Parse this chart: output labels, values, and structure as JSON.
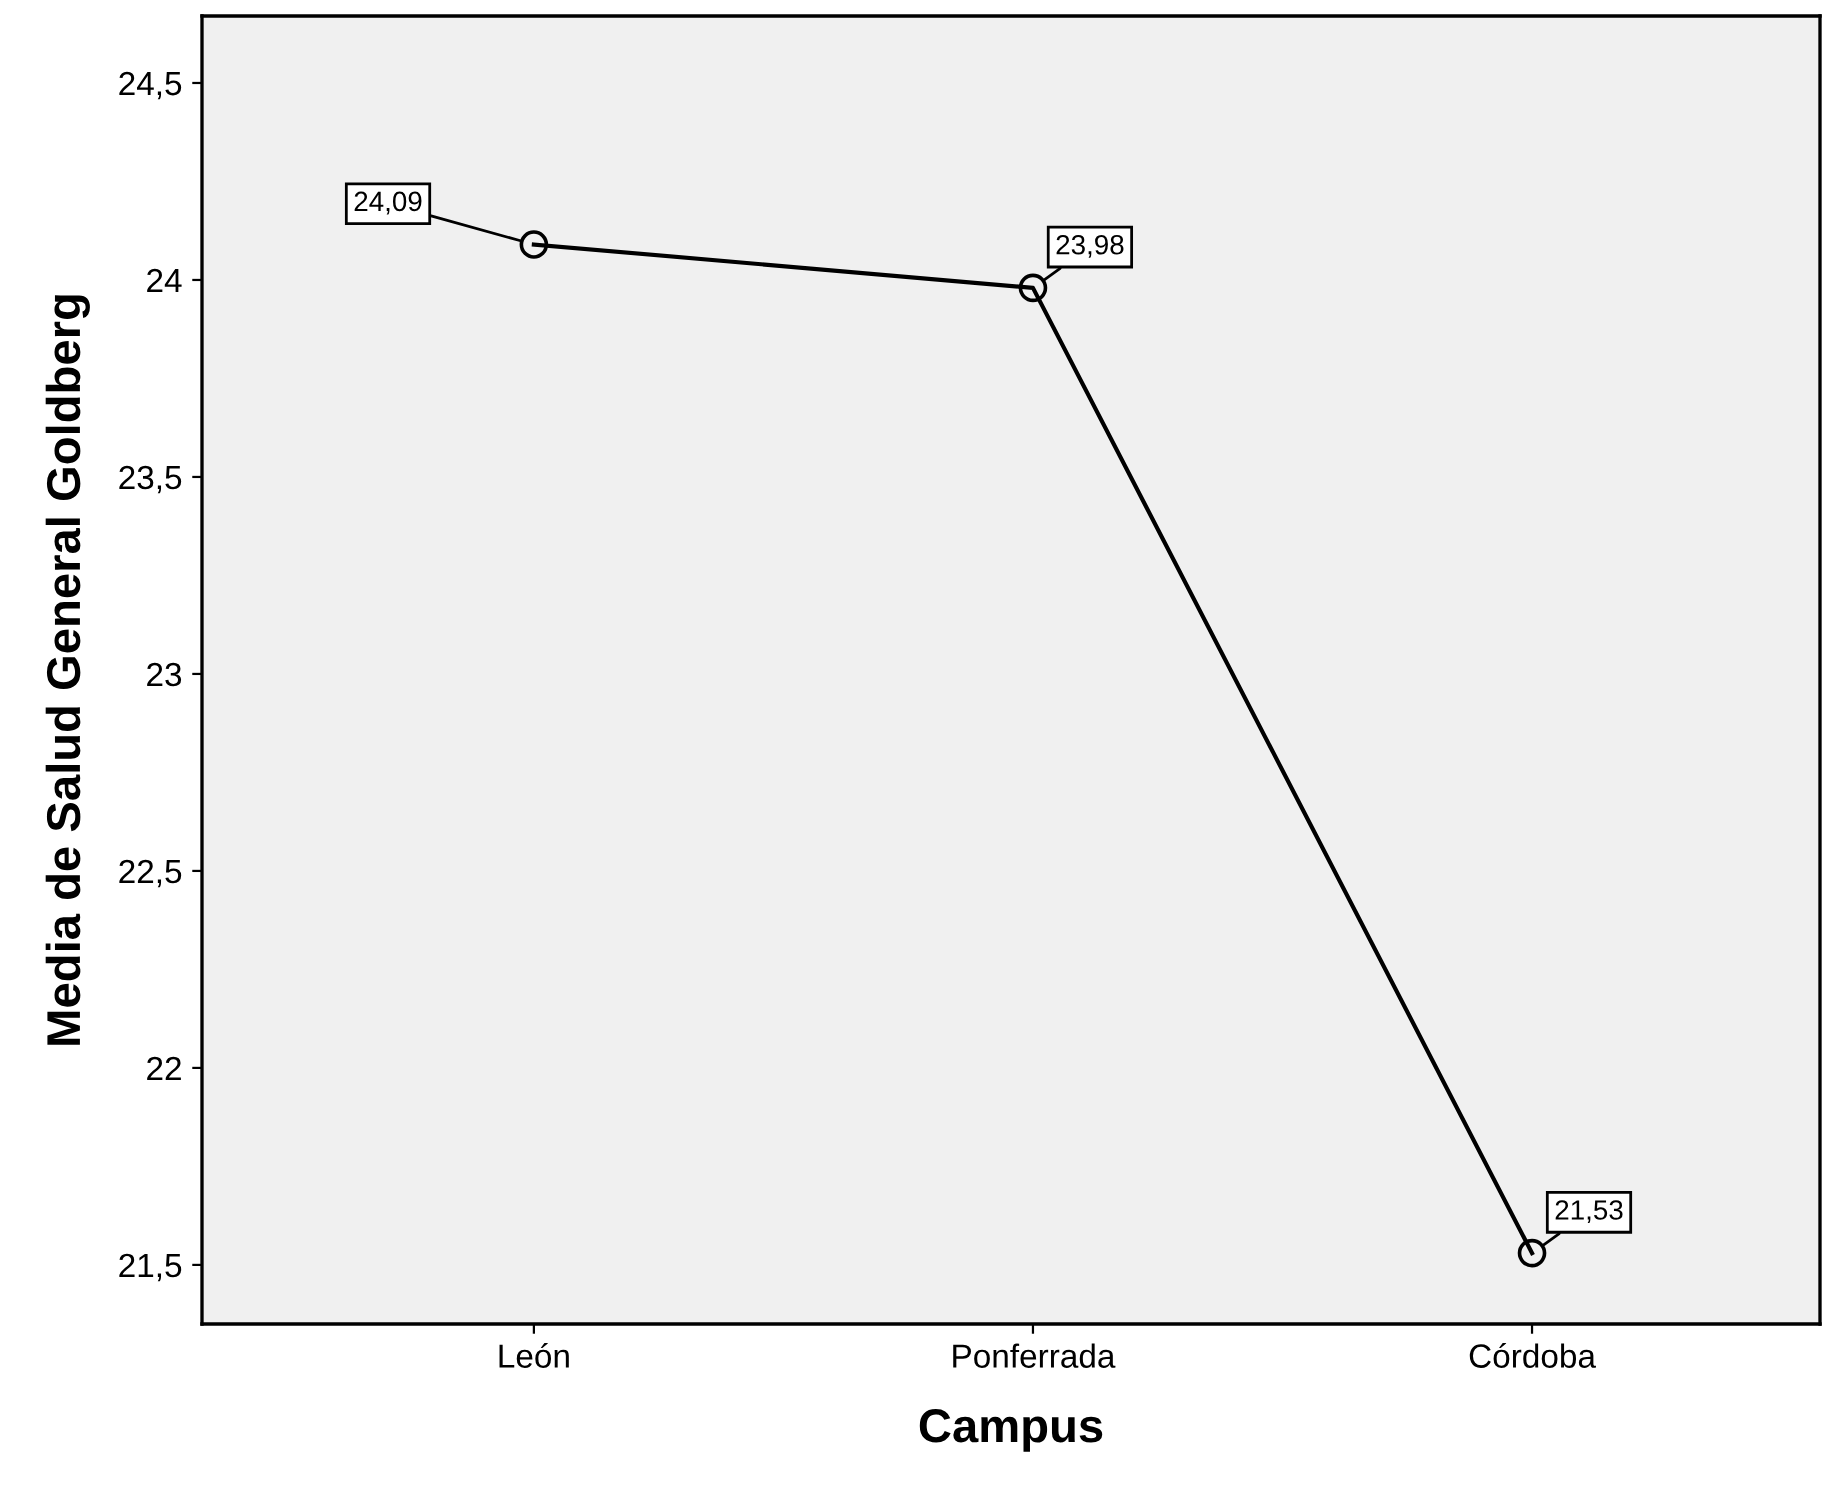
{
  "chart_data": {
    "type": "line",
    "xlabel": "Campus",
    "ylabel": "Media de Salud General Goldberg",
    "categories": [
      "León",
      "Ponferrada",
      "Córdoba"
    ],
    "series": [
      {
        "color": "#000000",
        "values": [
          24.09,
          23.98,
          21.53
        ],
        "value_labels": [
          "24,09",
          "23,98",
          "21,53"
        ]
      }
    ],
    "ylim": [
      21.35,
      24.67
    ],
    "yticks": [
      {
        "value": 21.5,
        "label": "21,5"
      },
      {
        "value": 22,
        "label": "22"
      },
      {
        "value": 22.5,
        "label": "22,5"
      },
      {
        "value": 23,
        "label": "23"
      },
      {
        "value": 23.5,
        "label": "23,5"
      },
      {
        "value": 24,
        "label": "24"
      },
      {
        "value": 24.5,
        "label": "24,5"
      }
    ],
    "marker": "circle",
    "line_style": "solid",
    "grid": false,
    "legend": false
  }
}
